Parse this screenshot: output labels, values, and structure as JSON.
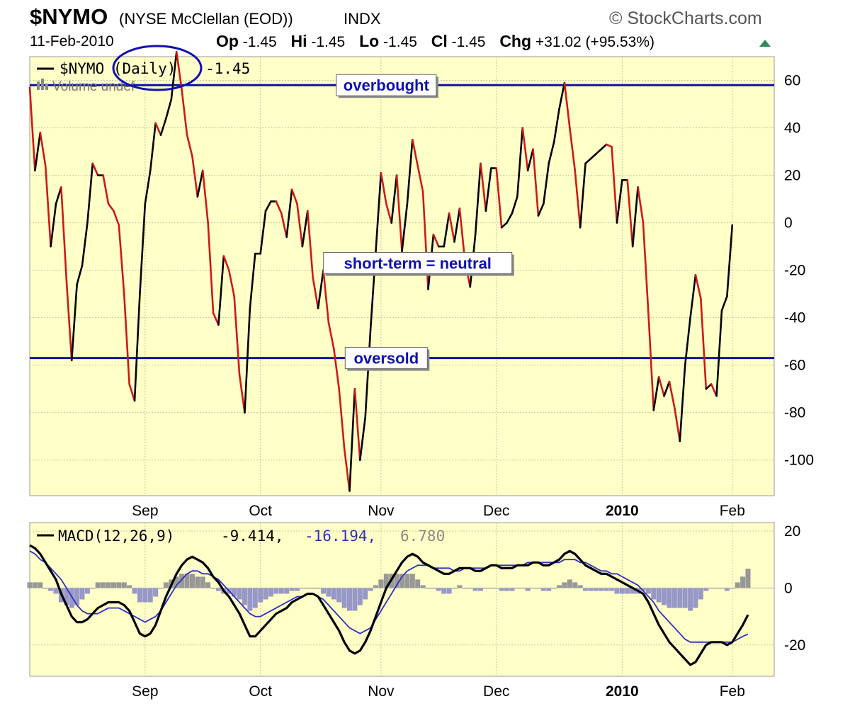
{
  "header": {
    "symbol": "$NYMO",
    "description": "(NYSE McClellan (EOD))",
    "exchange": "INDX",
    "brand": "© StockCharts.com",
    "date": "11-Feb-2010",
    "op_label": "Op",
    "op_value": "-1.45",
    "hi_label": "Hi",
    "hi_value": "-1.45",
    "lo_label": "Lo",
    "lo_value": "-1.45",
    "cl_label": "Cl",
    "cl_value": "-1.45",
    "chg_label": "Chg",
    "chg_value": "+31.02 (+95.53%)"
  },
  "colors": {
    "plot_bg": "#ffffc8",
    "up_line": "#000000",
    "down_line": "#d01818",
    "level_line": "#1010b0",
    "signal_line": "#3030c0",
    "histogram": "#9898c8",
    "histogram_pos": "#989898"
  },
  "chart_data": [
    {
      "type": "line",
      "legend": {
        "name": "$NYMO (Daily)",
        "value": "-1.45",
        "volume_label": "Volume undef",
        "placement": "top-left"
      },
      "ylim": [
        -115,
        70
      ],
      "yticks": [
        60,
        40,
        20,
        0,
        -20,
        -40,
        -60,
        -80,
        -100
      ],
      "ytick_labels": [
        "60",
        "40",
        "20",
        "0",
        "-20",
        "-40",
        "-60",
        "-80",
        "-100"
      ],
      "xlim": [
        0,
        142
      ],
      "x_month_labels": [
        {
          "label": "Sep",
          "x": 22,
          "bold": false
        },
        {
          "label": "Oct",
          "x": 44,
          "bold": false
        },
        {
          "label": "Nov",
          "x": 67,
          "bold": false
        },
        {
          "label": "Dec",
          "x": 89,
          "bold": false
        },
        {
          "label": "2010",
          "x": 113,
          "bold": true
        },
        {
          "label": "Feb",
          "x": 134,
          "bold": false
        }
      ],
      "grid": true,
      "reference_lines": [
        {
          "value": 58,
          "label": "overbought",
          "label_x": 68
        },
        {
          "value": -57,
          "label": "oversold",
          "label_x": 68
        }
      ],
      "annotations": [
        {
          "text": "short-term = neutral",
          "x": 74,
          "y": -17
        }
      ],
      "series": [
        {
          "values": [
            57,
            22,
            38,
            24,
            -10,
            8,
            15,
            -24,
            -58,
            -26,
            -18,
            0,
            25,
            20,
            20,
            8,
            5,
            -1,
            -30,
            -68,
            -75,
            -30,
            8,
            22,
            42,
            37,
            44,
            52,
            72,
            56,
            37,
            28,
            11,
            22,
            0,
            -38,
            -43,
            -14,
            -20,
            -31,
            -64,
            -80,
            -36,
            -13,
            -13,
            5,
            9,
            9,
            4,
            -6,
            14,
            8,
            -10,
            5,
            -23,
            -36,
            -20,
            -42,
            -53,
            -70,
            -95,
            -113,
            -70,
            -100,
            -82,
            -45,
            -12,
            21,
            8,
            0,
            20,
            -12,
            8,
            35,
            24,
            13,
            -28,
            -5,
            -10,
            -10,
            4,
            -8,
            6,
            -16,
            -27,
            -5,
            25,
            5,
            23,
            23,
            -2,
            0,
            4,
            11,
            40,
            22,
            31,
            3,
            8,
            25,
            34,
            48,
            59,
            40,
            22,
            -2,
            25,
            27,
            29,
            31,
            33,
            32,
            0,
            18,
            18,
            -10,
            15,
            0,
            -38,
            -79,
            -65,
            -73,
            -67,
            -78,
            -92,
            -60,
            -40,
            -22,
            -32,
            -70,
            -68,
            -73,
            -37,
            -31,
            -1
          ]
        }
      ]
    },
    {
      "type": "line",
      "legend": {
        "name": "MACD(12,26,9)",
        "macd_value": "-9.414,",
        "signal_value": "-16.194,",
        "hist_value": "6.780",
        "placement": "top-left"
      },
      "ylim": [
        -31,
        23
      ],
      "yticks": [
        20,
        0,
        -20
      ],
      "ytick_labels": [
        "20",
        "0",
        "-20"
      ],
      "xlim": [
        0,
        142
      ],
      "x_month_labels": [
        {
          "label": "Sep",
          "x": 22,
          "bold": false
        },
        {
          "label": "Oct",
          "x": 44,
          "bold": false
        },
        {
          "label": "Nov",
          "x": 67,
          "bold": false
        },
        {
          "label": "Dec",
          "x": 89,
          "bold": false
        },
        {
          "label": "2010",
          "x": 113,
          "bold": true
        },
        {
          "label": "Feb",
          "x": 134,
          "bold": false
        }
      ],
      "grid": true,
      "macd": [
        15,
        14,
        12,
        9,
        6,
        3,
        -2,
        -6,
        -10,
        -12,
        -12,
        -11,
        -9,
        -7,
        -6,
        -5,
        -5,
        -5,
        -6,
        -8,
        -12,
        -16,
        -17,
        -16,
        -13,
        -8,
        -3,
        1,
        5,
        8,
        10,
        11,
        10,
        9,
        7,
        4,
        2,
        -1,
        -3,
        -6,
        -9,
        -13,
        -17,
        -17,
        -15,
        -13,
        -11,
        -9,
        -8,
        -7,
        -5,
        -4,
        -3,
        -2,
        -2,
        -3,
        -6,
        -9,
        -12,
        -15,
        -19,
        -22,
        -23,
        -22,
        -19,
        -15,
        -10,
        -5,
        0,
        3,
        6,
        9,
        11,
        12,
        11,
        9,
        8,
        7,
        6,
        5,
        5,
        6,
        7,
        7,
        7,
        6,
        6,
        7,
        8,
        8,
        7,
        7,
        7,
        8,
        8,
        8,
        9,
        9,
        8,
        8,
        9,
        10,
        12,
        13,
        12,
        10,
        8,
        7,
        6,
        5,
        5,
        4,
        3,
        2,
        1,
        0,
        -1,
        -2,
        -5,
        -9,
        -13,
        -16,
        -19,
        -21,
        -23,
        -25,
        -27,
        -26,
        -23,
        -20,
        -19,
        -19,
        -19,
        -20,
        -19,
        -16,
        -13,
        -9.4
      ],
      "signal": [
        13,
        12,
        10,
        9,
        7,
        5,
        3,
        0,
        -3,
        -6,
        -8,
        -9,
        -9,
        -9,
        -8,
        -7,
        -7,
        -7,
        -8,
        -9,
        -10,
        -11,
        -12,
        -11,
        -10,
        -8,
        -5,
        -2,
        1,
        3,
        5,
        6,
        6,
        5,
        5,
        4,
        3,
        1,
        -1,
        -3,
        -5,
        -7,
        -9,
        -10,
        -10,
        -9,
        -8,
        -7,
        -6,
        -5,
        -4,
        -3,
        -3,
        -2,
        -2,
        -3,
        -4,
        -6,
        -8,
        -10,
        -12,
        -14,
        -15,
        -16,
        -15,
        -14,
        -11,
        -8,
        -5,
        -2,
        1,
        4,
        6,
        7,
        8,
        8,
        8,
        7,
        7,
        7,
        7,
        6,
        6,
        7,
        7,
        7,
        7,
        7,
        8,
        8,
        8,
        8,
        8,
        8,
        8,
        9,
        9,
        9,
        9,
        9,
        9,
        9,
        10,
        10,
        10,
        9,
        9,
        8,
        7,
        6,
        6,
        5,
        5,
        4,
        3,
        2,
        1,
        -1,
        -3,
        -5,
        -8,
        -10,
        -12,
        -14,
        -16,
        -18,
        -19,
        -19,
        -19,
        -19,
        -19,
        -19,
        -19,
        -19,
        -19,
        -18,
        -17,
        -16.2
      ],
      "histogram": [
        2,
        2,
        2,
        0,
        -1,
        -2,
        -5,
        -6,
        -7,
        -6,
        -4,
        -2,
        0,
        2,
        2,
        2,
        2,
        2,
        2,
        1,
        -2,
        -5,
        -5,
        -5,
        -3,
        0,
        2,
        3,
        4,
        5,
        5,
        5,
        4,
        4,
        2,
        0,
        -1,
        -2,
        -2,
        -3,
        -4,
        -6,
        -8,
        -7,
        -5,
        -4,
        -3,
        -2,
        -2,
        -2,
        -1,
        -1,
        0,
        0,
        0,
        0,
        -2,
        -3,
        -4,
        -5,
        -7,
        -8,
        -8,
        -6,
        -4,
        -1,
        1,
        3,
        5,
        5,
        5,
        5,
        5,
        5,
        3,
        1,
        0,
        0,
        -1,
        -2,
        -2,
        0,
        1,
        0,
        0,
        -1,
        -1,
        0,
        0,
        0,
        -1,
        -1,
        -1,
        0,
        0,
        -1,
        0,
        0,
        -1,
        -1,
        0,
        1,
        2,
        3,
        2,
        1,
        -1,
        -1,
        -1,
        -1,
        -1,
        -1,
        -2,
        -2,
        -2,
        -2,
        -2,
        -1,
        -2,
        -4,
        -5,
        -6,
        -7,
        -7,
        -7,
        -7,
        -8,
        -7,
        -4,
        -1,
        0,
        0,
        0,
        -1,
        0,
        2,
        4,
        6.8
      ]
    }
  ]
}
